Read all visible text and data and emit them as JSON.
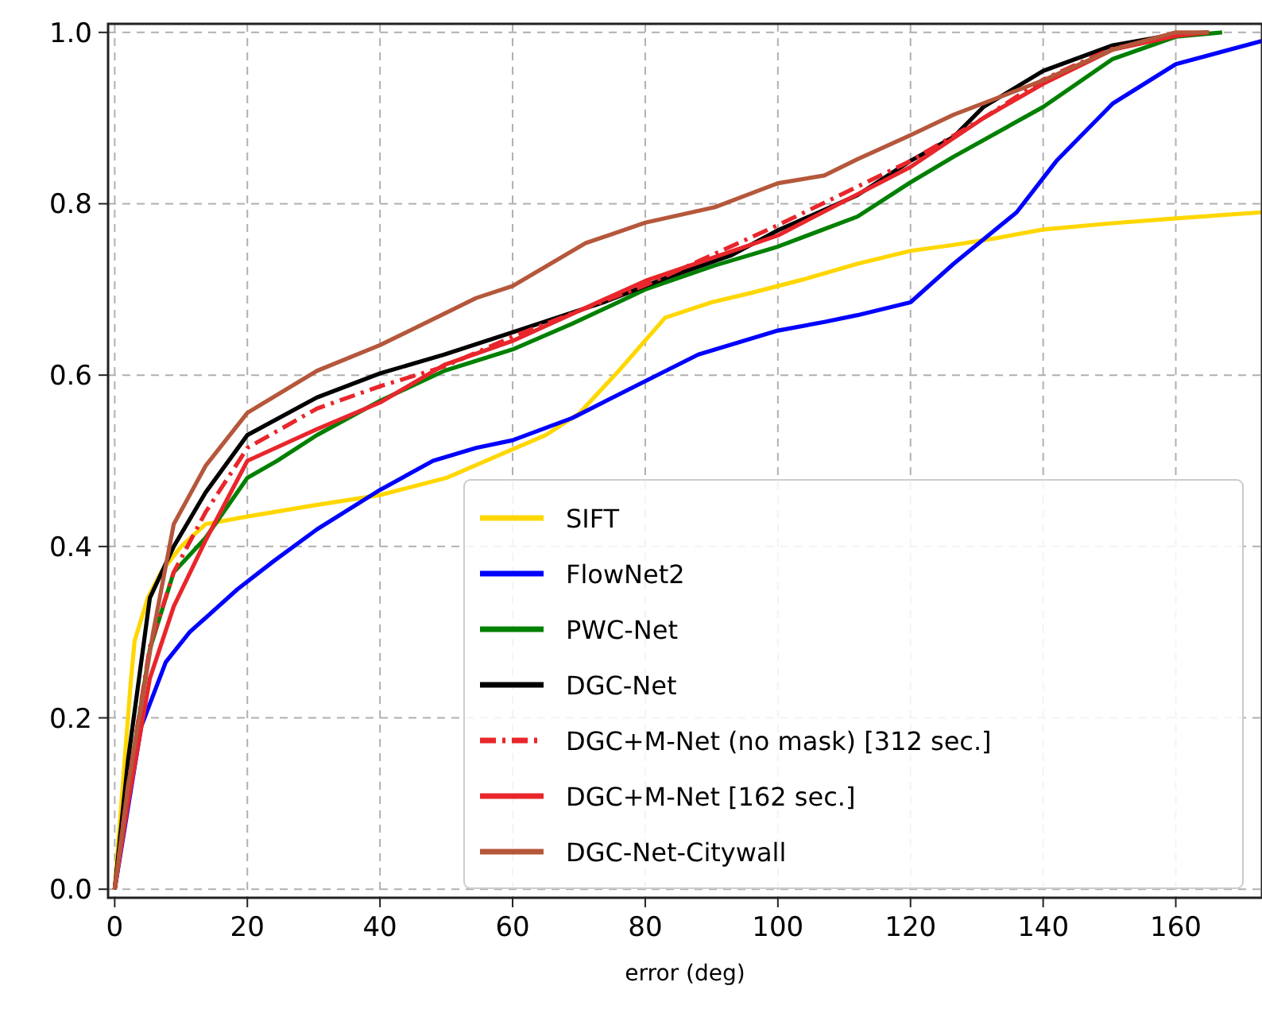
{
  "chart_data": {
    "type": "line",
    "xlabel": "error (deg)",
    "xlim": [
      -1,
      173
    ],
    "ylim": [
      -0.01,
      1.01
    ],
    "xticks": [
      0,
      20,
      40,
      60,
      80,
      100,
      120,
      140,
      160
    ],
    "yticks": [
      {
        "value": 0,
        "label": "0.0"
      },
      {
        "value": 0.2,
        "label": "0.2"
      },
      {
        "value": 0.4,
        "label": "0.4"
      },
      {
        "value": 0.6,
        "label": "0.6"
      },
      {
        "value": 0.8,
        "label": "0.8"
      },
      {
        "value": 1,
        "label": "1.0"
      }
    ],
    "grid": true,
    "legend": "bottom right",
    "series": [
      {
        "name": "SIFT",
        "color": "#ffd700",
        "line_style": "solid",
        "x": [
          0,
          1.5,
          2.4,
          3,
          5,
          7,
          10,
          13.7,
          20,
          30,
          40,
          50,
          59,
          65,
          70,
          76,
          83,
          90,
          96,
          104,
          112,
          120,
          126.5,
          133,
          140,
          150,
          160,
          173
        ],
        "values": [
          0,
          0.15,
          0.24,
          0.29,
          0.34,
          0.37,
          0.4,
          0.426,
          0.435,
          0.448,
          0.46,
          0.48,
          0.51,
          0.53,
          0.555,
          0.605,
          0.667,
          0.685,
          0.696,
          0.712,
          0.73,
          0.745,
          0.752,
          0.76,
          0.77,
          0.777,
          0.783,
          0.79
        ]
      },
      {
        "name": "FlowNet2",
        "color": "#0000ff",
        "line_style": "solid",
        "x": [
          0,
          4,
          7.7,
          11.3,
          18.5,
          24,
          30.5,
          40,
          48,
          54.5,
          60,
          69,
          80,
          88,
          100,
          107,
          112,
          120,
          126.5,
          136,
          142,
          150.5,
          160,
          173
        ],
        "values": [
          0,
          0.19,
          0.265,
          0.3,
          0.35,
          0.383,
          0.42,
          0.466,
          0.5,
          0.515,
          0.524,
          0.55,
          0.593,
          0.624,
          0.652,
          0.662,
          0.67,
          0.685,
          0.73,
          0.79,
          0.85,
          0.917,
          0.963,
          0.99
        ]
      },
      {
        "name": "PWC-Net",
        "color": "#008000",
        "line_style": "solid",
        "x": [
          0,
          2,
          5.3,
          8.9,
          13.7,
          20,
          24.5,
          30.5,
          40,
          49.7,
          60,
          69,
          80,
          90.5,
          100,
          112,
          120,
          126.5,
          140,
          150.5,
          160,
          167
        ],
        "values": [
          0,
          0.12,
          0.28,
          0.37,
          0.41,
          0.48,
          0.5,
          0.53,
          0.57,
          0.605,
          0.63,
          0.66,
          0.7,
          0.728,
          0.75,
          0.785,
          0.825,
          0.855,
          0.913,
          0.969,
          0.995,
          1.0
        ]
      },
      {
        "name": "DGC-Net",
        "color": "#000000",
        "line_style": "solid",
        "x": [
          0,
          2,
          5.3,
          8.9,
          13.7,
          20,
          30.5,
          40,
          49.7,
          60,
          73.7,
          83,
          93,
          100,
          112,
          120,
          126.5,
          131,
          140,
          150.5,
          160,
          165
        ],
        "values": [
          0,
          0.15,
          0.34,
          0.4,
          0.463,
          0.53,
          0.574,
          0.602,
          0.624,
          0.65,
          0.685,
          0.713,
          0.74,
          0.769,
          0.81,
          0.85,
          0.878,
          0.913,
          0.955,
          0.985,
          0.998,
          1.0
        ]
      },
      {
        "name": "DGC+M-Net (no mask) [312 sec.]",
        "color": "#e8262b",
        "line_style": "dashed-dot",
        "x": [
          0,
          2,
          5.3,
          8.9,
          13.7,
          20,
          30.5,
          40,
          49.7,
          60,
          80,
          100,
          120,
          131,
          140,
          150,
          160,
          165
        ],
        "values": [
          0,
          0.12,
          0.283,
          0.37,
          0.44,
          0.515,
          0.561,
          0.587,
          0.61,
          0.645,
          0.705,
          0.775,
          0.85,
          0.9,
          0.945,
          0.98,
          0.997,
          1.0
        ]
      },
      {
        "name": "DGC+M-Net [162 sec.]",
        "color": "#e8262b",
        "line_style": "solid",
        "x": [
          0,
          2,
          5.3,
          8.9,
          13.7,
          20,
          30.5,
          40,
          49.7,
          60,
          80,
          100,
          120,
          131,
          140,
          150.5,
          160,
          165
        ],
        "values": [
          0,
          0.1,
          0.246,
          0.33,
          0.407,
          0.5,
          0.537,
          0.568,
          0.612,
          0.64,
          0.71,
          0.763,
          0.843,
          0.9,
          0.94,
          0.98,
          0.996,
          1.0
        ]
      },
      {
        "name": "DGC-Net-Citywall",
        "color": "#b5573b",
        "line_style": "solid",
        "x": [
          0,
          2,
          5.8,
          8.9,
          13.7,
          20,
          30.5,
          40,
          54.5,
          60,
          71,
          80,
          90.5,
          100,
          107,
          112,
          120,
          126.5,
          140,
          150.5,
          160,
          165
        ],
        "values": [
          0,
          0.12,
          0.3,
          0.426,
          0.494,
          0.556,
          0.605,
          0.635,
          0.69,
          0.704,
          0.754,
          0.778,
          0.796,
          0.824,
          0.833,
          0.852,
          0.88,
          0.904,
          0.944,
          0.98,
          1.0,
          1.0
        ]
      }
    ]
  }
}
